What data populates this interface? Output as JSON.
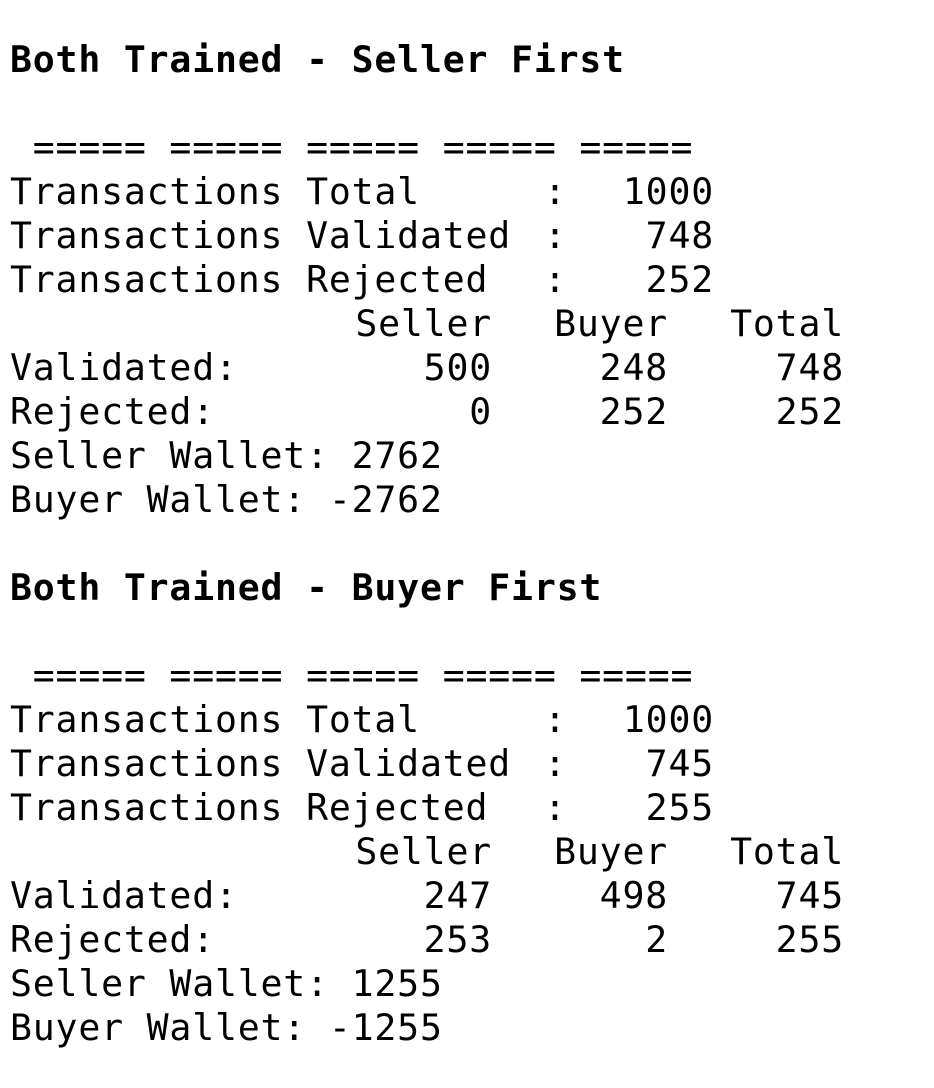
{
  "sections": [
    {
      "heading": "Both Trained - Seller First",
      "separator": " ===== ===== ===== ===== =====",
      "summary": [
        {
          "label": "Transactions Total",
          "value": "1000"
        },
        {
          "label": "Transactions Validated",
          "value": "748"
        },
        {
          "label": "Transactions Rejected",
          "value": "252"
        }
      ],
      "table": {
        "columns": [
          "Seller",
          "Buyer",
          "Total"
        ],
        "rows": [
          {
            "label": "Validated:",
            "seller": "500",
            "buyer": "248",
            "total": "748"
          },
          {
            "label": "Rejected:",
            "seller": "0",
            "buyer": "252",
            "total": "252"
          }
        ]
      },
      "wallets": {
        "seller": "Seller Wallet: 2762",
        "buyer": "Buyer Wallet: -2762"
      }
    },
    {
      "heading": "Both Trained - Buyer First",
      "separator": " ===== ===== ===== ===== =====",
      "summary": [
        {
          "label": "Transactions Total",
          "value": "1000"
        },
        {
          "label": "Transactions Validated",
          "value": "745"
        },
        {
          "label": "Transactions Rejected",
          "value": "255"
        }
      ],
      "table": {
        "columns": [
          "Seller",
          "Buyer",
          "Total"
        ],
        "rows": [
          {
            "label": "Validated:",
            "seller": "247",
            "buyer": "498",
            "total": "745"
          },
          {
            "label": "Rejected:",
            "seller": "253",
            "buyer": "2",
            "total": "255"
          }
        ]
      },
      "wallets": {
        "seller": "Seller Wallet: 1255",
        "buyer": "Buyer Wallet: -1255"
      }
    }
  ]
}
